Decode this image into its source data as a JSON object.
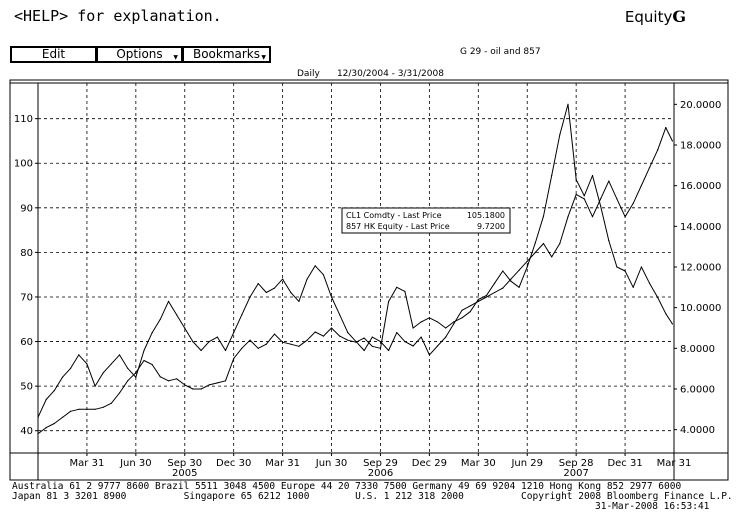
{
  "header": {
    "help_text": "<HELP> for explanation.",
    "brand_prefix": "Equity",
    "brand_suffix": "G"
  },
  "menu": {
    "edit_label": "Edit",
    "options_label": "Options",
    "bookmarks_label": "Bookmarks"
  },
  "chart_info": {
    "id_label": "G 29 - oil and 857",
    "range_label": "Daily      12/30/2004 - 3/31/2008"
  },
  "chart_data": {
    "type": "line",
    "title": "G 29 - oil and 857",
    "period": "Daily 12/30/2004 - 3/31/2008",
    "x_tick_labels": [
      "Mar 31",
      "Jun 30",
      "Sep 30",
      "Dec 30",
      "Mar 31",
      "Jun 30",
      "Sep 29",
      "Dec 29",
      "Mar 30",
      "Jun 29",
      "Sep 28",
      "Dec 31",
      "Mar 31"
    ],
    "year_labels": [
      "2005",
      "2006",
      "2007"
    ],
    "left_axis": {
      "ylim": [
        35,
        118
      ],
      "ticks": [
        40,
        50,
        60,
        70,
        80,
        90,
        100,
        110
      ]
    },
    "right_axis": {
      "ylim": [
        2.85,
        21.05
      ],
      "ticks": [
        "4.0000",
        "6.0000",
        "8.0000",
        "10.0000",
        "12.0000",
        "14.0000",
        "16.0000",
        "18.0000",
        "20.0000"
      ]
    },
    "x_range": [
      0,
      39
    ],
    "legend": [
      {
        "name": "CL1 Comdty - Last Price",
        "value": "105.1800"
      },
      {
        "name": "857 HK Equity - Last Price",
        "value": "9.7200"
      }
    ],
    "series": [
      {
        "name": "CL1 Comdty - Last Price",
        "axis": "left",
        "x": [
          0,
          0.5,
          1,
          1.5,
          2,
          2.5,
          3,
          3.5,
          4,
          4.5,
          5,
          5.5,
          6,
          6.5,
          7,
          7.5,
          8,
          8.5,
          9,
          9.5,
          10,
          10.5,
          11,
          11.5,
          12,
          12.5,
          13,
          13.5,
          14,
          14.5,
          15,
          15.5,
          16,
          16.5,
          17,
          17.5,
          18,
          18.5,
          19,
          19.5,
          20,
          20.5,
          21,
          21.5,
          22,
          22.5,
          23,
          23.5,
          24,
          24.5,
          25,
          25.5,
          26,
          26.5,
          27,
          27.5,
          28,
          28.5,
          29,
          29.5,
          30,
          30.5,
          31,
          31.5,
          32,
          32.5,
          33,
          33.5,
          34,
          34.5,
          35,
          35.5,
          36,
          36.5,
          37,
          37.5,
          38,
          38.5,
          38.9
        ],
        "values": [
          43,
          47,
          49,
          52,
          54,
          57,
          55,
          50,
          53,
          55,
          57,
          54,
          52,
          58,
          62,
          65,
          69,
          66,
          63,
          60,
          58,
          60,
          61,
          58,
          62,
          66,
          70,
          73,
          71,
          72,
          74,
          71,
          69,
          74,
          77,
          75,
          70,
          66,
          62,
          60,
          58,
          61,
          60,
          58,
          62,
          60,
          59,
          61,
          57,
          59,
          61,
          64,
          67,
          68,
          69,
          70,
          71,
          72,
          74,
          76,
          78,
          80,
          82,
          79,
          82,
          88,
          93,
          92,
          88,
          92,
          96,
          92,
          88,
          91,
          95,
          99,
          103,
          108,
          105
        ]
      },
      {
        "name": "857 HK Equity - Last Price",
        "axis": "right",
        "x": [
          0,
          0.5,
          1,
          1.5,
          2,
          2.5,
          3,
          3.5,
          4,
          4.5,
          5,
          5.5,
          6,
          6.5,
          7,
          7.5,
          8,
          8.5,
          9,
          9.5,
          10,
          10.5,
          11,
          11.5,
          12,
          12.5,
          13,
          13.5,
          14,
          14.5,
          15,
          15.5,
          16,
          16.5,
          17,
          17.5,
          18,
          18.5,
          19,
          19.5,
          20,
          20.5,
          21,
          21.5,
          22,
          22.5,
          23,
          23.5,
          24,
          24.5,
          25,
          25.5,
          26,
          26.5,
          27,
          27.5,
          28,
          28.5,
          29,
          29.5,
          30,
          30.5,
          31,
          31.5,
          32,
          32.5,
          33,
          33.5,
          34,
          34.5,
          35,
          35.5,
          36,
          36.5,
          37,
          37.5,
          38,
          38.5,
          38.9
        ],
        "values": [
          3.8,
          4.1,
          4.3,
          4.6,
          4.9,
          5.0,
          5.0,
          5.0,
          5.1,
          5.3,
          5.8,
          6.4,
          6.8,
          7.4,
          7.2,
          6.6,
          6.4,
          6.5,
          6.2,
          6.0,
          6.0,
          6.2,
          6.3,
          6.4,
          7.5,
          8.0,
          8.4,
          8.0,
          8.2,
          8.7,
          8.3,
          8.2,
          8.1,
          8.4,
          8.8,
          8.6,
          9.0,
          8.6,
          8.4,
          8.3,
          8.5,
          8.1,
          8.0,
          10.3,
          11.0,
          10.8,
          9.0,
          9.3,
          9.5,
          9.3,
          9.0,
          9.3,
          9.5,
          9.8,
          10.4,
          10.6,
          11.2,
          11.8,
          11.3,
          11.0,
          12.0,
          13.2,
          14.5,
          16.5,
          18.5,
          20.0,
          16.3,
          15.5,
          16.5,
          15.0,
          13.3,
          12.0,
          11.8,
          11.0,
          12.0,
          11.2,
          10.5,
          9.7,
          9.2
        ]
      }
    ]
  },
  "footer": {
    "line1": "Australia 61 2 9777 8600 Brazil 5511 3048 4500 Europe 44 20 7330 7500 Germany 49 69 9204 1210 Hong Kong 852 2977 6000",
    "line2": "Japan 81 3 3201 8900          Singapore 65 6212 1000        U.S. 1 212 318 2000          Copyright 2008 Bloomberg Finance L.P.",
    "line3": "31-Mar-2008 16:53:41"
  },
  "colors": {
    "line": "#000000",
    "background": "#ffffff"
  }
}
